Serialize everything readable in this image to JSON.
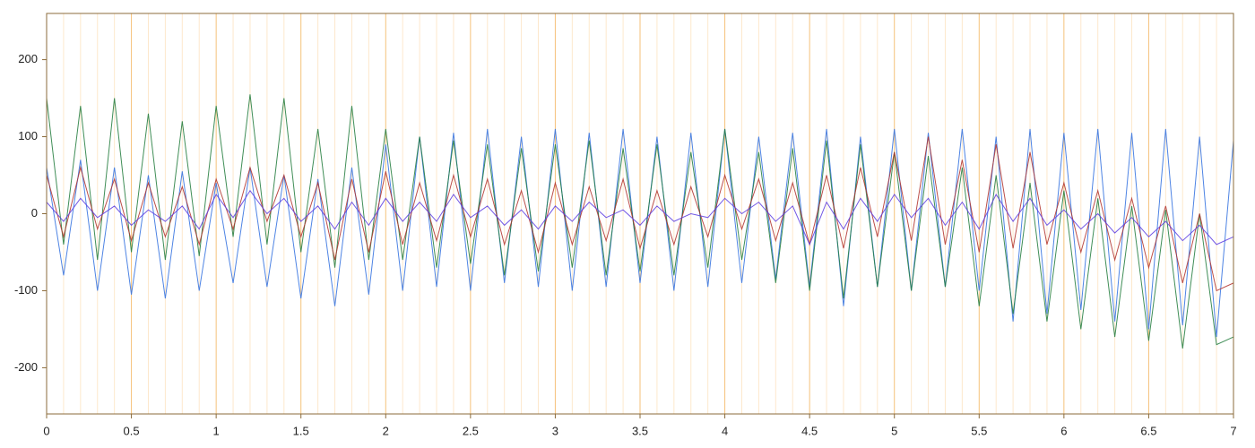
{
  "chart_data": {
    "type": "line",
    "xlim": [
      0,
      7
    ],
    "ylim": [
      -260,
      260
    ],
    "xticks": [
      0,
      0.5,
      1,
      1.5,
      2,
      2.5,
      3,
      3.5,
      4,
      4.5,
      5,
      5.5,
      6,
      6.5,
      7
    ],
    "xminorticks": [
      0.1,
      0.2,
      0.3,
      0.4,
      0.6,
      0.7,
      0.8,
      0.9,
      1.1,
      1.2,
      1.3,
      1.4,
      1.6,
      1.7,
      1.8,
      1.9,
      2.1,
      2.2,
      2.3,
      2.4,
      2.6,
      2.7,
      2.8,
      2.9,
      3.1,
      3.2,
      3.3,
      3.4,
      3.6,
      3.7,
      3.8,
      3.9,
      4.1,
      4.2,
      4.3,
      4.4,
      4.6,
      4.7,
      4.8,
      4.9,
      5.1,
      5.2,
      5.3,
      5.4,
      5.6,
      5.7,
      5.8,
      5.9,
      6.1,
      6.2,
      6.3,
      6.4,
      6.6,
      6.7,
      6.8,
      6.9
    ],
    "yticks": [
      -200,
      -100,
      0,
      100,
      200
    ],
    "grid": true,
    "grid_color": "#f5c27a",
    "minor_grid_color": "#fde8cc",
    "axis_color": "#8b6b3b",
    "x": [
      0,
      0.1,
      0.2,
      0.3,
      0.4,
      0.5,
      0.6,
      0.7,
      0.8,
      0.9,
      1,
      1.1,
      1.2,
      1.3,
      1.4,
      1.5,
      1.6,
      1.7,
      1.8,
      1.9,
      2,
      2.1,
      2.2,
      2.3,
      2.4,
      2.5,
      2.6,
      2.7,
      2.8,
      2.9,
      3,
      3.1,
      3.2,
      3.3,
      3.4,
      3.5,
      3.6,
      3.7,
      3.8,
      3.9,
      4,
      4.1,
      4.2,
      4.3,
      4.4,
      4.5,
      4.6,
      4.7,
      4.8,
      4.9,
      5,
      5.1,
      5.2,
      5.3,
      5.4,
      5.5,
      5.6,
      5.7,
      5.8,
      5.9,
      6,
      6.1,
      6.2,
      6.3,
      6.4,
      6.5,
      6.6,
      6.7,
      6.8,
      6.9,
      7
    ],
    "series": [
      {
        "color": "#2f6fdf",
        "values": [
          60,
          -80,
          70,
          -100,
          60,
          -105,
          50,
          -110,
          55,
          -100,
          40,
          -90,
          60,
          -95,
          50,
          -110,
          45,
          -120,
          60,
          -105,
          90,
          -100,
          100,
          -95,
          105,
          -100,
          110,
          -90,
          100,
          -95,
          110,
          -100,
          105,
          -95,
          110,
          -90,
          100,
          -100,
          105,
          -95,
          110,
          -90,
          100,
          -85,
          105,
          -95,
          110,
          -120,
          100,
          -95,
          110,
          -100,
          105,
          -95,
          110,
          -100,
          100,
          -140,
          110,
          -130,
          105,
          -125,
          110,
          -140,
          105,
          -150,
          110,
          -145,
          100,
          -160,
          95
        ]
      },
      {
        "color": "#1e7a3a",
        "values": [
          150,
          -40,
          140,
          -60,
          150,
          -50,
          130,
          -60,
          120,
          -55,
          140,
          -30,
          155,
          -40,
          150,
          -50,
          110,
          -70,
          140,
          -60,
          110,
          -60,
          100,
          -70,
          95,
          -65,
          90,
          -80,
          85,
          -75,
          90,
          -70,
          95,
          -80,
          85,
          -75,
          90,
          -80,
          80,
          -70,
          110,
          -60,
          80,
          -90,
          85,
          -100,
          95,
          -110,
          90,
          -95,
          80,
          -100,
          75,
          -95,
          60,
          -120,
          50,
          -130,
          40,
          -140,
          30,
          -150,
          20,
          -160,
          10,
          -165,
          5,
          -175,
          0,
          -170,
          -160
        ]
      },
      {
        "color": "#b0302a",
        "values": [
          50,
          -30,
          60,
          -20,
          45,
          -35,
          40,
          -30,
          35,
          -40,
          45,
          -20,
          60,
          -10,
          50,
          -30,
          40,
          -60,
          45,
          -50,
          55,
          -40,
          40,
          -35,
          50,
          -30,
          45,
          -40,
          30,
          -50,
          40,
          -40,
          35,
          -35,
          45,
          -45,
          30,
          -40,
          35,
          -30,
          50,
          -20,
          45,
          -35,
          40,
          -40,
          50,
          -45,
          60,
          -30,
          80,
          -35,
          100,
          -40,
          70,
          -50,
          90,
          -45,
          80,
          -40,
          40,
          -50,
          30,
          -60,
          20,
          -70,
          10,
          -90,
          0,
          -100,
          -90
        ]
      },
      {
        "color": "#5a3be0",
        "values": [
          15,
          -10,
          20,
          -5,
          10,
          -15,
          5,
          -10,
          10,
          -20,
          25,
          -5,
          30,
          0,
          20,
          -10,
          10,
          -20,
          15,
          -15,
          20,
          -10,
          15,
          -10,
          25,
          -5,
          10,
          -15,
          5,
          -20,
          10,
          -10,
          15,
          -5,
          5,
          -15,
          10,
          -10,
          0,
          -5,
          20,
          0,
          15,
          -10,
          10,
          -40,
          15,
          -20,
          20,
          -10,
          25,
          -5,
          20,
          -15,
          15,
          -20,
          25,
          -10,
          20,
          -15,
          5,
          -20,
          0,
          -25,
          -5,
          -30,
          -10,
          -35,
          -15,
          -40,
          -30
        ]
      }
    ]
  }
}
